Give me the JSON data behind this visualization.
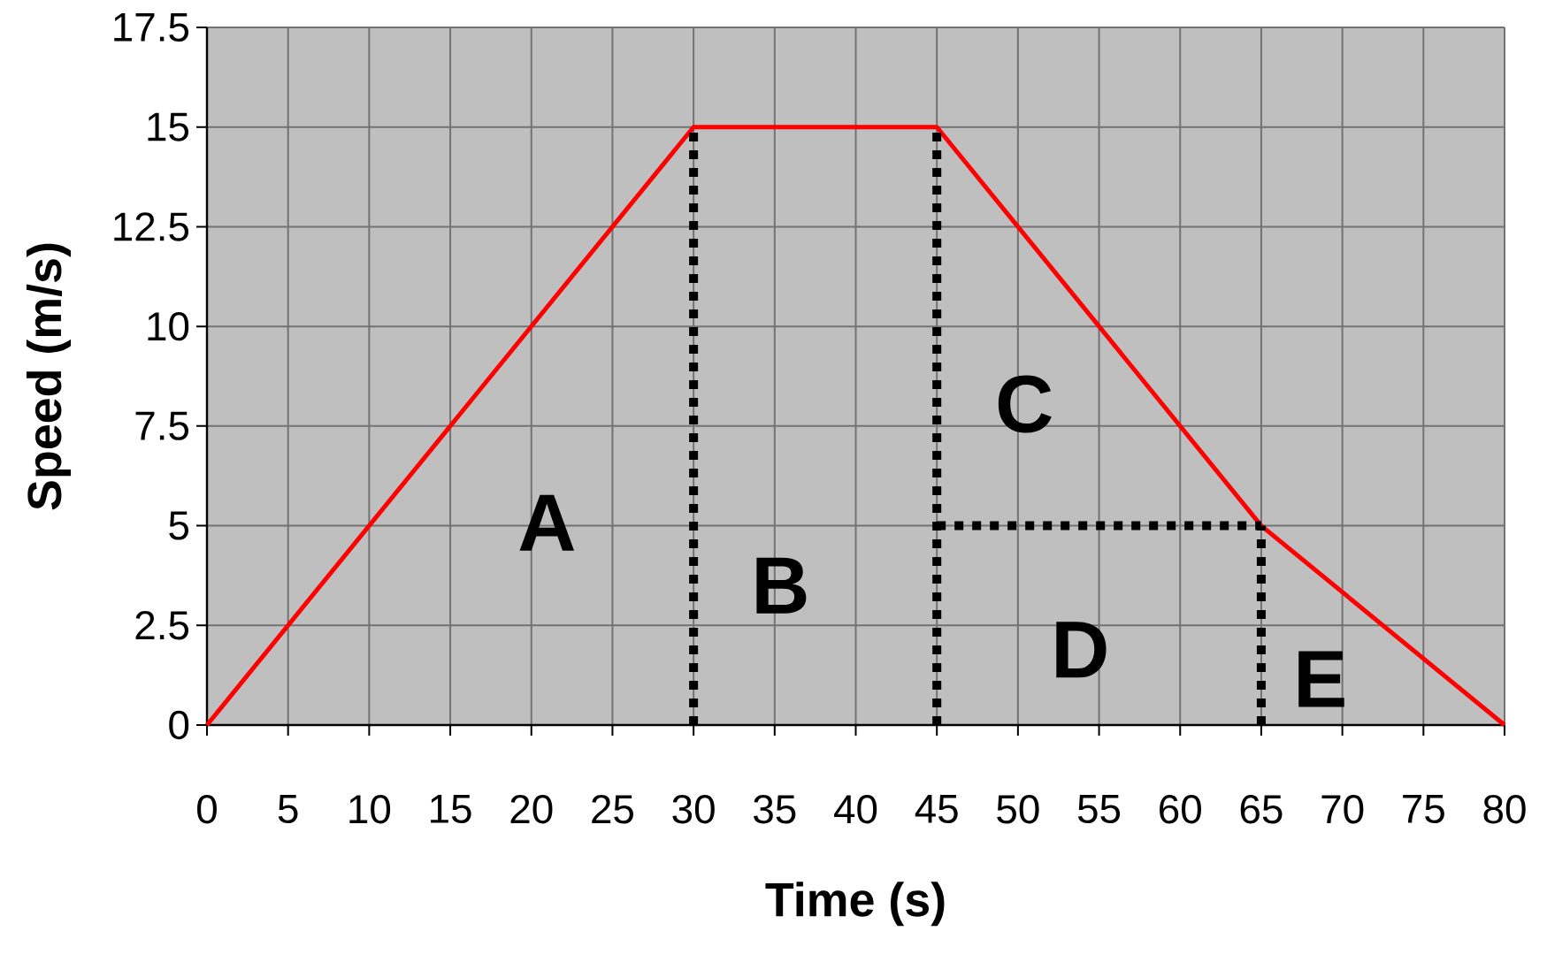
{
  "chart_data": {
    "type": "line",
    "xlabel": "Time (s)",
    "ylabel": "Speed (m/s)",
    "xlim": [
      0,
      80
    ],
    "ylim": [
      0,
      17.5
    ],
    "xticks": [
      0,
      5,
      10,
      15,
      20,
      25,
      30,
      35,
      40,
      45,
      50,
      55,
      60,
      65,
      70,
      75,
      80
    ],
    "yticks": [
      0,
      2.5,
      5,
      7.5,
      10,
      12.5,
      15,
      17.5
    ],
    "grid": true,
    "marker": "none",
    "line_style": "solid",
    "series": [
      {
        "color": "#ff0000",
        "x": [
          0,
          30,
          45,
          65,
          80
        ],
        "values": [
          0,
          15,
          15,
          5,
          0
        ]
      },
      {
        "color": "#000000",
        "line_style": "dotted",
        "x": [
          30,
          30
        ],
        "values": [
          0,
          15
        ]
      },
      {
        "color": "#000000",
        "line_style": "dotted",
        "x": [
          45,
          45
        ],
        "values": [
          0,
          15
        ]
      },
      {
        "color": "#000000",
        "line_style": "dotted",
        "x": [
          45,
          65
        ],
        "values": [
          5,
          5
        ]
      },
      {
        "color": "#000000",
        "line_style": "dotted",
        "x": [
          65,
          65
        ],
        "values": [
          0,
          5
        ]
      }
    ],
    "annotations": [
      "A",
      "B",
      "C",
      "D",
      "E"
    ]
  }
}
